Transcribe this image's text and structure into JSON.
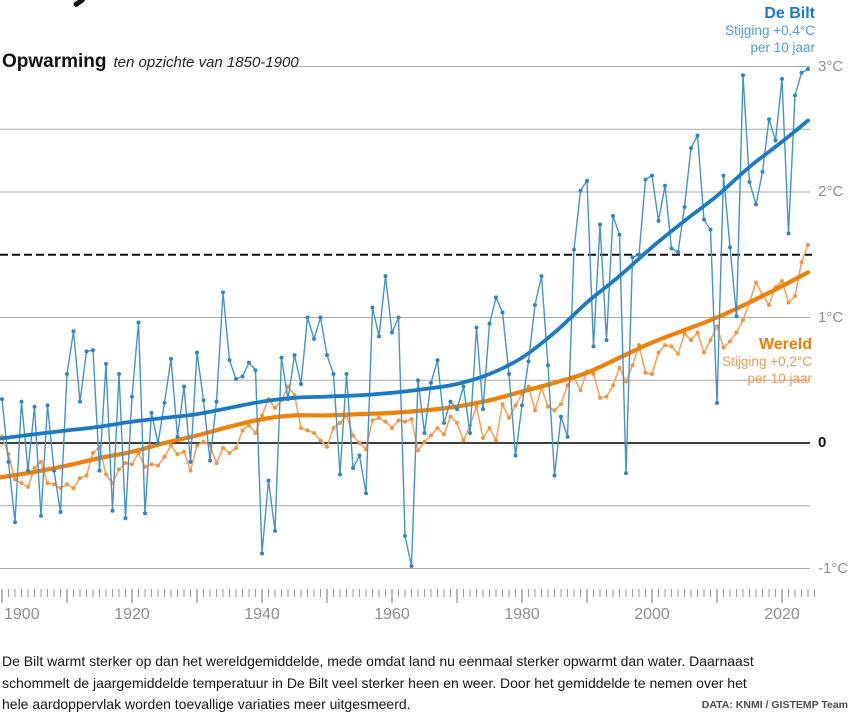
{
  "header": {
    "title": "Opwarming",
    "subtitle": "ten opzichte van 1850-1900"
  },
  "legend": {
    "de_bilt": {
      "name": "De Bilt",
      "trend_label": "Stijging +0,4°C",
      "per_label": "per 10 jaar"
    },
    "wereld": {
      "name": "Wereld",
      "trend_label": "Stijging +0,2°C",
      "per_label": "per 10 jaar"
    }
  },
  "axis": {
    "y_labels": [
      {
        "value": 3,
        "label": "3°C"
      },
      {
        "value": 2,
        "label": "2°C"
      },
      {
        "value": 1,
        "label": "1°C"
      },
      {
        "value": 0,
        "label": "0"
      },
      {
        "value": -1,
        "label": "-1°C"
      }
    ],
    "x_labels": [
      "1900",
      "1920",
      "1940",
      "1960",
      "1980",
      "2000",
      "2020"
    ]
  },
  "colors": {
    "blue_annual": "#4493cc",
    "blue_dot": "#2f86c5",
    "blue_trend": "#1b7ac1",
    "orange_annual": "#f5a35e",
    "orange_dot": "#f2943f",
    "orange_trend": "#ef8009",
    "grid": "#a9a9a9",
    "tick": "#999999",
    "reference_black": "#111111"
  },
  "chart_data": {
    "type": "line",
    "title": "Opwarming ten opzichte van 1850-1900",
    "ylabel": "°C",
    "xlim": [
      1899,
      2025.5
    ],
    "ylim": [
      -1.1,
      3.05
    ],
    "grid_values": [
      3,
      2.5,
      2,
      1,
      0.5,
      -0.5,
      -1
    ],
    "reference_line": {
      "value": 1.5,
      "style": "dashed-black"
    },
    "zero_line": 0,
    "x_years": {
      "start": 1900,
      "end": 2024,
      "step": 1
    },
    "series": [
      {
        "name": "De Bilt jaargemiddelde",
        "style": "thin-line-with-dots",
        "values": [
          0.35,
          -0.15,
          -0.63,
          0.33,
          -0.22,
          0.29,
          -0.58,
          0.3,
          -0.22,
          -0.55,
          0.55,
          0.89,
          0.33,
          0.73,
          0.74,
          -0.22,
          0.63,
          -0.54,
          0.55,
          -0.6,
          0.37,
          0.96,
          -0.56,
          0.24,
          0.0,
          0.32,
          0.67,
          0.05,
          0.45,
          -0.15,
          0.72,
          0.34,
          -0.14,
          0.33,
          1.2,
          0.66,
          0.51,
          0.53,
          0.64,
          0.58,
          -0.88,
          -0.3,
          -0.7,
          0.68,
          0.35,
          0.7,
          0.47,
          1.0,
          0.83,
          1.0,
          0.7,
          0.55,
          -0.25,
          0.55,
          -0.2,
          -0.1,
          -0.4,
          1.08,
          0.85,
          1.33,
          0.88,
          1.0,
          -0.74,
          -0.98,
          0.5,
          0.08,
          0.48,
          0.66,
          0.16,
          0.33,
          0.27,
          0.45,
          0.08,
          0.92,
          0.27,
          0.95,
          1.16,
          1.04,
          0.55,
          -0.1,
          0.3,
          0.65,
          1.1,
          1.33,
          0.62,
          -0.26,
          0.21,
          0.05,
          1.54,
          2.01,
          2.09,
          0.77,
          1.74,
          0.82,
          1.81,
          1.66,
          -0.24,
          1.48,
          1.5,
          2.1,
          2.13,
          1.77,
          2.05,
          1.55,
          1.52,
          1.88,
          2.35,
          2.45,
          1.78,
          1.7,
          0.32,
          2.13,
          1.56,
          1.01,
          2.93,
          2.08,
          1.9,
          2.16,
          2.58,
          2.41,
          2.9,
          1.67,
          2.77,
          2.95,
          2.98
        ]
      },
      {
        "name": "De Bilt trend (stijging +0,4°C per 10 jaar)",
        "style": "thick-smooth",
        "points": [
          [
            1899,
            0.03
          ],
          [
            1905,
            0.07
          ],
          [
            1910,
            0.1
          ],
          [
            1915,
            0.13
          ],
          [
            1920,
            0.17
          ],
          [
            1925,
            0.2
          ],
          [
            1930,
            0.23
          ],
          [
            1935,
            0.28
          ],
          [
            1940,
            0.33
          ],
          [
            1945,
            0.36
          ],
          [
            1950,
            0.37
          ],
          [
            1955,
            0.38
          ],
          [
            1960,
            0.4
          ],
          [
            1965,
            0.43
          ],
          [
            1970,
            0.47
          ],
          [
            1975,
            0.55
          ],
          [
            1980,
            0.68
          ],
          [
            1985,
            0.88
          ],
          [
            1990,
            1.12
          ],
          [
            1995,
            1.33
          ],
          [
            2000,
            1.56
          ],
          [
            2005,
            1.77
          ],
          [
            2010,
            1.97
          ],
          [
            2015,
            2.2
          ],
          [
            2020,
            2.4
          ],
          [
            2024,
            2.57
          ]
        ]
      },
      {
        "name": "Wereld jaargemiddelde",
        "style": "thin-line-with-dots",
        "values": [
          0.05,
          -0.09,
          -0.29,
          -0.32,
          -0.35,
          -0.2,
          -0.15,
          -0.32,
          -0.33,
          -0.36,
          -0.33,
          -0.36,
          -0.28,
          -0.26,
          -0.08,
          -0.03,
          -0.25,
          -0.32,
          -0.21,
          -0.16,
          -0.17,
          -0.08,
          -0.19,
          -0.17,
          -0.18,
          -0.11,
          -0.02,
          -0.09,
          -0.07,
          -0.22,
          -0.02,
          0.01,
          -0.02,
          -0.16,
          -0.04,
          -0.08,
          -0.04,
          0.1,
          0.14,
          0.08,
          0.22,
          0.35,
          0.28,
          0.34,
          0.45,
          0.38,
          0.12,
          0.1,
          0.08,
          0.02,
          -0.03,
          0.12,
          0.16,
          0.22,
          0.06,
          0.0,
          -0.05,
          0.18,
          0.2,
          0.17,
          0.12,
          0.18,
          0.17,
          0.19,
          -0.06,
          0.01,
          0.06,
          0.12,
          0.07,
          0.21,
          0.16,
          0.02,
          0.14,
          0.29,
          0.04,
          0.12,
          0.02,
          0.31,
          0.2,
          0.3,
          0.39,
          0.45,
          0.26,
          0.44,
          0.29,
          0.26,
          0.31,
          0.46,
          0.52,
          0.42,
          0.57,
          0.55,
          0.36,
          0.37,
          0.46,
          0.6,
          0.49,
          0.62,
          0.78,
          0.56,
          0.55,
          0.72,
          0.78,
          0.77,
          0.71,
          0.87,
          0.82,
          0.88,
          0.72,
          0.82,
          0.93,
          0.76,
          0.81,
          0.88,
          0.98,
          1.12,
          1.28,
          1.18,
          1.1,
          1.24,
          1.29,
          1.12,
          1.17,
          1.44,
          1.58
        ]
      },
      {
        "name": "Wereld trend (stijging +0,2°C per 10 jaar)",
        "style": "thick-smooth",
        "points": [
          [
            1899,
            -0.28
          ],
          [
            1905,
            -0.23
          ],
          [
            1910,
            -0.18
          ],
          [
            1915,
            -0.12
          ],
          [
            1920,
            -0.07
          ],
          [
            1925,
            0.0
          ],
          [
            1930,
            0.06
          ],
          [
            1935,
            0.13
          ],
          [
            1940,
            0.19
          ],
          [
            1945,
            0.22
          ],
          [
            1950,
            0.22
          ],
          [
            1955,
            0.23
          ],
          [
            1960,
            0.24
          ],
          [
            1965,
            0.26
          ],
          [
            1970,
            0.29
          ],
          [
            1975,
            0.34
          ],
          [
            1980,
            0.41
          ],
          [
            1985,
            0.48
          ],
          [
            1990,
            0.56
          ],
          [
            1995,
            0.68
          ],
          [
            2000,
            0.8
          ],
          [
            2005,
            0.9
          ],
          [
            2010,
            1.0
          ],
          [
            2015,
            1.12
          ],
          [
            2020,
            1.25
          ],
          [
            2024,
            1.36
          ]
        ]
      }
    ],
    "legend_position": "labels near lines (De Bilt top-right, Wereld mid-right)",
    "grid": true
  },
  "footer": {
    "lines": [
      "De Bilt warmt sterker op dan het wereldgemiddelde, mede omdat land nu eenmaal sterker opwarmt dan water. Daarnaast",
      "schommelt de jaargemiddelde temperatuur in De Bilt veel sterker heen en weer. Door het gemiddelde te nemen over het",
      "hele aardoppervlak worden toevallige variaties meer uitgesmeerd."
    ],
    "credit": "DATA: KNMI / GISTEMP Team"
  }
}
